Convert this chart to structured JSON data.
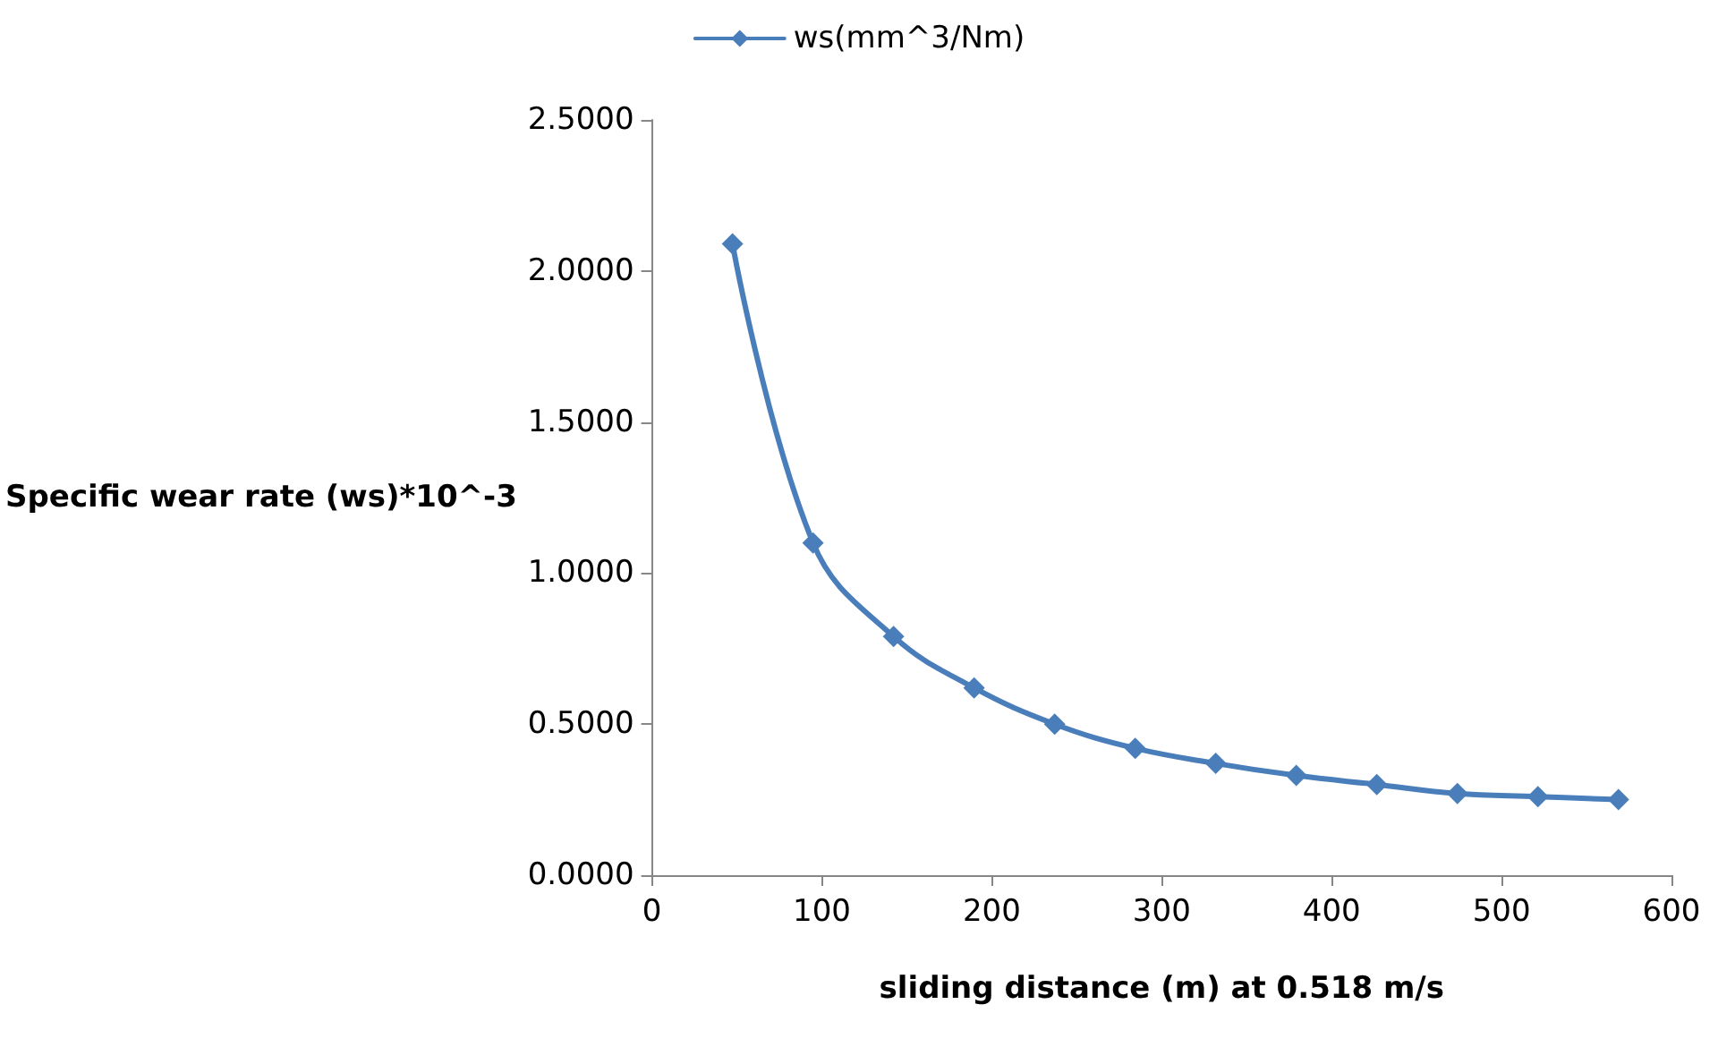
{
  "chart_data": {
    "type": "line",
    "xlabel": "sliding distance (m) at 0.518 m/s",
    "ylabel": "Specific wear rate (ws)*10^-3",
    "x": [
      47.4,
      94.8,
      142.2,
      189.6,
      237,
      284.4,
      331.8,
      379.2,
      426.6,
      474,
      521.4,
      568.8
    ],
    "series": [
      {
        "name": "ws(mm^3/Nm)",
        "color": "#4a7ebb",
        "values": [
          2.09,
          1.1,
          0.79,
          0.62,
          0.5,
          0.42,
          0.37,
          0.33,
          0.3,
          0.27,
          0.26,
          0.25
        ]
      }
    ],
    "xlim": [
      0,
      600
    ],
    "xticks": [
      0,
      100,
      200,
      300,
      400,
      500,
      600
    ],
    "ylim": [
      0,
      2.5
    ],
    "yticks": [
      {
        "value": 0,
        "label": "0.0000"
      },
      {
        "value": 0.5,
        "label": "0.5000"
      },
      {
        "value": 1,
        "label": "1.0000"
      },
      {
        "value": 1.5,
        "label": "1.5000"
      },
      {
        "value": 2,
        "label": "2.0000"
      },
      {
        "value": 2.5,
        "label": "2.5000"
      }
    ],
    "grid": false,
    "legend": "top",
    "marker": "diamond",
    "line_style": "solid"
  }
}
